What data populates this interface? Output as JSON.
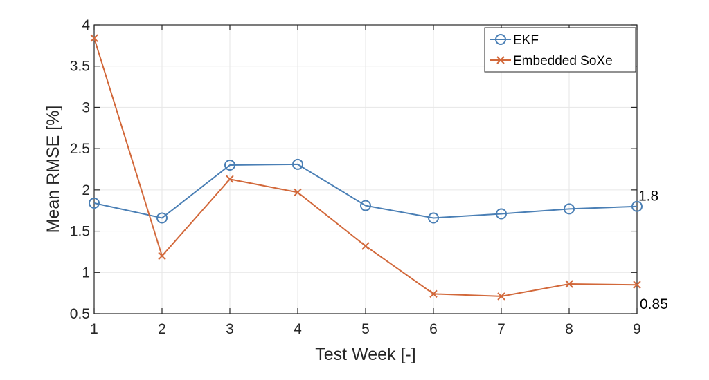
{
  "chart_data": {
    "type": "line",
    "xlabel": "Test Week [-]",
    "ylabel": "Mean RMSE [%]",
    "xlim": [
      1,
      9
    ],
    "ylim": [
      0.5,
      4
    ],
    "xticks": [
      1,
      2,
      3,
      4,
      5,
      6,
      7,
      8,
      9
    ],
    "xtick_labels": [
      "1",
      "2",
      "3",
      "4",
      "5",
      "6",
      "7",
      "8",
      "9"
    ],
    "yticks": [
      0.5,
      1,
      1.5,
      2,
      2.5,
      3,
      3.5,
      4
    ],
    "ytick_labels": [
      "0.5",
      "1",
      "1.5",
      "2",
      "2.5",
      "3",
      "3.5",
      "4"
    ],
    "grid": true,
    "legend_position": "top-right",
    "x": [
      1,
      2,
      3,
      4,
      5,
      6,
      7,
      8,
      9
    ],
    "series": [
      {
        "name": "EKF",
        "color": "#4a7fb5",
        "marker": "circle",
        "values": [
          1.84,
          1.66,
          2.3,
          2.31,
          1.81,
          1.66,
          1.71,
          1.77,
          1.8
        ]
      },
      {
        "name": "Embedded SoXe",
        "color": "#d2683a",
        "marker": "x",
        "values": [
          3.84,
          1.2,
          2.13,
          1.97,
          1.32,
          0.74,
          0.71,
          0.86,
          0.85
        ]
      }
    ],
    "annotations": [
      {
        "text": "1.8",
        "x": 9,
        "y": 1.8
      },
      {
        "text": "0.85",
        "x": 9,
        "y": 0.85
      }
    ]
  }
}
